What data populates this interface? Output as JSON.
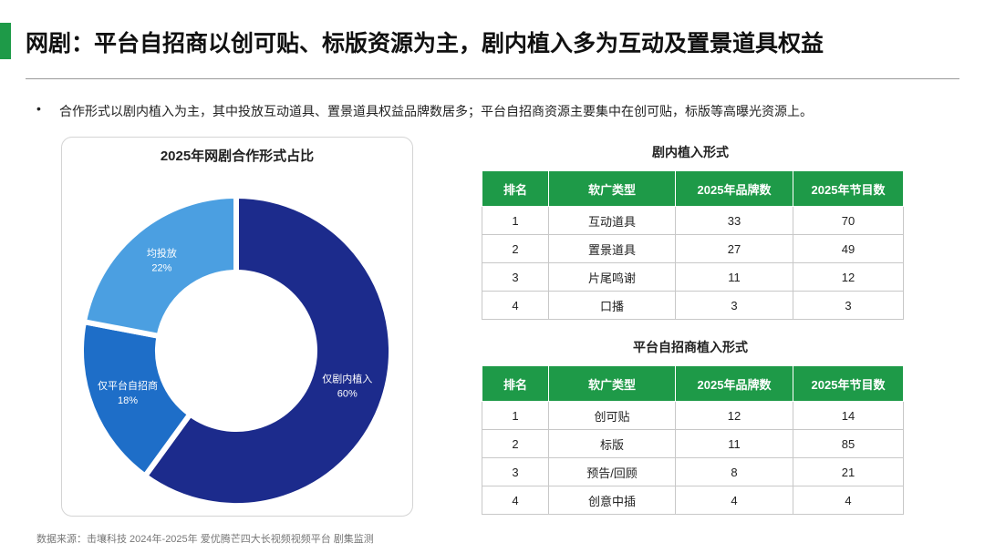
{
  "header": {
    "title": "网剧：平台自招商以创可贴、标版资源为主，剧内植入多为互动及置景道具权益"
  },
  "bullets": [
    "合作形式以剧内植入为主，其中投放互动道具、置景道具权益品牌数居多；平台自招商资源主要集中在创可贴，标版等高曝光资源上。"
  ],
  "chart_data": {
    "type": "pie",
    "donut": true,
    "title": "2025年网剧合作形式占比",
    "categories": [
      "仅剧内植入",
      "仅平台自招商",
      "均投放"
    ],
    "values": [
      60,
      18,
      22
    ],
    "value_labels": [
      "60%",
      "18%",
      "22%"
    ],
    "colors": [
      "#1c2b8c",
      "#1e6ec8",
      "#4b9fe1"
    ]
  },
  "tables": [
    {
      "title": "剧内植入形式",
      "header": [
        "排名",
        "软广类型",
        "2025年品牌数",
        "2025年节目数"
      ],
      "rows": [
        [
          1,
          "互动道具",
          33,
          70
        ],
        [
          2,
          "置景道具",
          27,
          49
        ],
        [
          3,
          "片尾鸣谢",
          11,
          12
        ],
        [
          4,
          "口播",
          3,
          3
        ]
      ]
    },
    {
      "title": "平台自招商植入形式",
      "header": [
        "排名",
        "软广类型",
        "2025年品牌数",
        "2025年节目数"
      ],
      "rows": [
        [
          1,
          "创可贴",
          12,
          14
        ],
        [
          2,
          "标版",
          11,
          85
        ],
        [
          3,
          "预告/回顾",
          8,
          21
        ],
        [
          4,
          "创意中插",
          4,
          4
        ]
      ]
    }
  ],
  "source": "数据来源：击壤科技 2024年-2025年 爱优腾芒四大长视频视频平台 剧集监测"
}
